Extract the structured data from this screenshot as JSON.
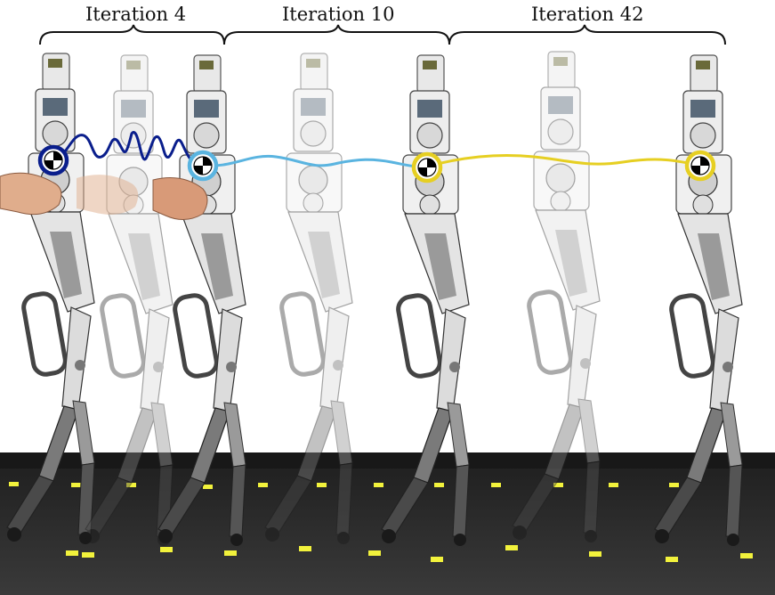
{
  "labels": {
    "iteration_a": "Iteration 4",
    "iteration_b": "Iteration 10",
    "iteration_c": "Iteration 42"
  },
  "colors": {
    "trace_iteration_4": "#0a1e8c",
    "trace_iteration_10": "#5ab4e0",
    "trace_iteration_42": "#e6cf22",
    "floor": "#2a2a2a",
    "floor_marker": "#f2f23c",
    "robot_metal": "#e4e4e4"
  },
  "icons": {
    "com_marker": "center-of-mass-icon"
  }
}
